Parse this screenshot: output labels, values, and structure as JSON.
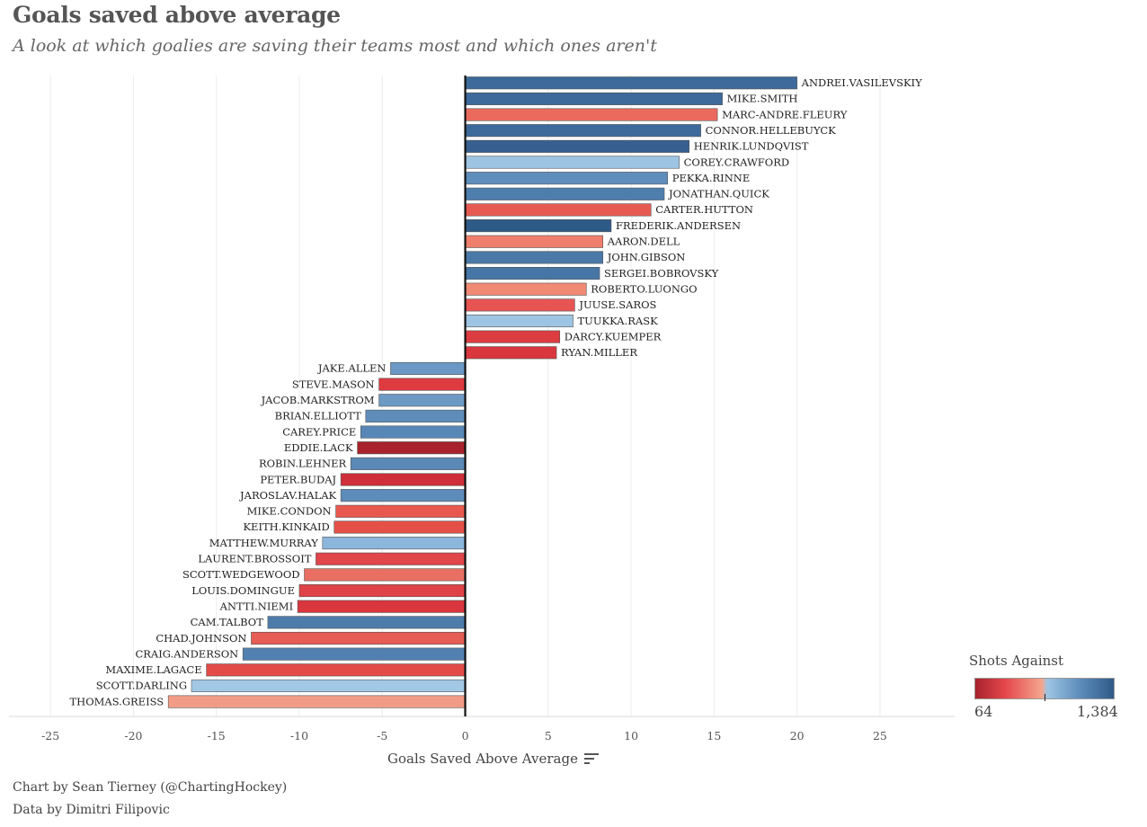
{
  "header": {
    "title": "Goals saved above average",
    "subtitle": "A look at which goalies are saving their teams most and which ones aren't"
  },
  "footer": {
    "credit_chart": "Chart by Sean Tierney (@ChartingHockey)",
    "credit_data": "Data by Dimitri Filipovic"
  },
  "legend": {
    "title": "Shots Against",
    "min_label": "64",
    "max_label": "1,384"
  },
  "colors": {
    "red_dark": "#a8222c",
    "red": "#e5484d",
    "salmon": "#f08a75",
    "light_blue": "#9dc4e3",
    "blue": "#5f8ebc",
    "blue_dark": "#2e5a87"
  },
  "chart_data": {
    "type": "bar",
    "orientation": "horizontal",
    "xlabel": "Goals Saved Above Average",
    "ylabel": "",
    "xlim": [
      -27.5,
      29.5
    ],
    "xticks": [
      -25,
      -20,
      -15,
      -10,
      -5,
      0,
      5,
      10,
      15,
      20,
      25
    ],
    "grid": true,
    "legend": "bottom-right",
    "color_encoding": "Shots Against",
    "color_range": [
      64,
      1384
    ],
    "bars": [
      {
        "name": "ANDREI.VASILEVSKIY",
        "value": 20.0,
        "color": "#3d6a9a"
      },
      {
        "name": "MIKE.SMITH",
        "value": 15.5,
        "color": "#3d6a9a"
      },
      {
        "name": "MARC-ANDRE.FLEURY",
        "value": 15.2,
        "color": "#eb6a5e"
      },
      {
        "name": "CONNOR.HELLEBUYCK",
        "value": 14.2,
        "color": "#3d6a9a"
      },
      {
        "name": "HENRIK.LUNDQVIST",
        "value": 13.5,
        "color": "#36608f"
      },
      {
        "name": "COREY.CRAWFORD",
        "value": 12.9,
        "color": "#9dc4e3"
      },
      {
        "name": "PEKKA.RINNE",
        "value": 12.2,
        "color": "#5f8ebc"
      },
      {
        "name": "JONATHAN.QUICK",
        "value": 12.0,
        "color": "#4e7eae"
      },
      {
        "name": "CARTER.HUTTON",
        "value": 11.2,
        "color": "#e65a52"
      },
      {
        "name": "FREDERIK.ANDERSEN",
        "value": 8.8,
        "color": "#2e5a87"
      },
      {
        "name": "AARON.DELL",
        "value": 8.3,
        "color": "#ef7f6c"
      },
      {
        "name": "JOHN.GIBSON",
        "value": 8.3,
        "color": "#4a79a8"
      },
      {
        "name": "SERGEI.BOBROVSKY",
        "value": 8.1,
        "color": "#4676a6"
      },
      {
        "name": "ROBERTO.LUONGO",
        "value": 7.3,
        "color": "#f08a75"
      },
      {
        "name": "JUUSE.SAROS",
        "value": 6.6,
        "color": "#e75553"
      },
      {
        "name": "TUUKKA.RASK",
        "value": 6.5,
        "color": "#9dc4e3"
      },
      {
        "name": "DARCY.KUEMPER",
        "value": 5.7,
        "color": "#dd3c40"
      },
      {
        "name": "RYAN.MILLER",
        "value": 5.5,
        "color": "#d9373d"
      },
      {
        "name": "JAKE.ALLEN",
        "value": -4.5,
        "color": "#6b98c4"
      },
      {
        "name": "STEVE.MASON",
        "value": -5.2,
        "color": "#de3b40"
      },
      {
        "name": "JACOB.MARKSTROM",
        "value": -5.2,
        "color": "#6d9ac5"
      },
      {
        "name": "BRIAN.ELLIOTT",
        "value": -6.0,
        "color": "#5e8dbc"
      },
      {
        "name": "CAREY.PRICE",
        "value": -6.3,
        "color": "#5787b6"
      },
      {
        "name": "EDDIE.LACK",
        "value": -6.5,
        "color": "#a8222c"
      },
      {
        "name": "ROBIN.LEHNER",
        "value": -6.9,
        "color": "#5a89b8"
      },
      {
        "name": "PETER.BUDAJ",
        "value": -7.5,
        "color": "#cf2f38"
      },
      {
        "name": "JAROSLAV.HALAK",
        "value": -7.5,
        "color": "#5d8cba"
      },
      {
        "name": "MIKE.CONDON",
        "value": -7.8,
        "color": "#e8584f"
      },
      {
        "name": "KEITH.KINKAID",
        "value": -7.9,
        "color": "#e45048"
      },
      {
        "name": "MATTHEW.MURRAY",
        "value": -8.6,
        "color": "#8cb6dc"
      },
      {
        "name": "LAURENT.BROSSOIT",
        "value": -9.0,
        "color": "#e0464a"
      },
      {
        "name": "SCOTT.WEDGEWOOD",
        "value": -9.7,
        "color": "#e96f63"
      },
      {
        "name": "LOUIS.DOMINGUE",
        "value": -10.0,
        "color": "#df4247"
      },
      {
        "name": "ANTTI.NIEMI",
        "value": -10.1,
        "color": "#d9363d"
      },
      {
        "name": "CAM.TALBOT",
        "value": -11.9,
        "color": "#4d7cab"
      },
      {
        "name": "CHAD.JOHNSON",
        "value": -12.9,
        "color": "#e65d55"
      },
      {
        "name": "CRAIG.ANDERSON",
        "value": -13.4,
        "color": "#5281b1"
      },
      {
        "name": "MAXIME.LAGACE",
        "value": -15.6,
        "color": "#e34b49"
      },
      {
        "name": "SCOTT.DARLING",
        "value": -16.5,
        "color": "#a3c8e6"
      },
      {
        "name": "THOMAS.GREISS",
        "value": -17.9,
        "color": "#f29c86"
      }
    ]
  }
}
